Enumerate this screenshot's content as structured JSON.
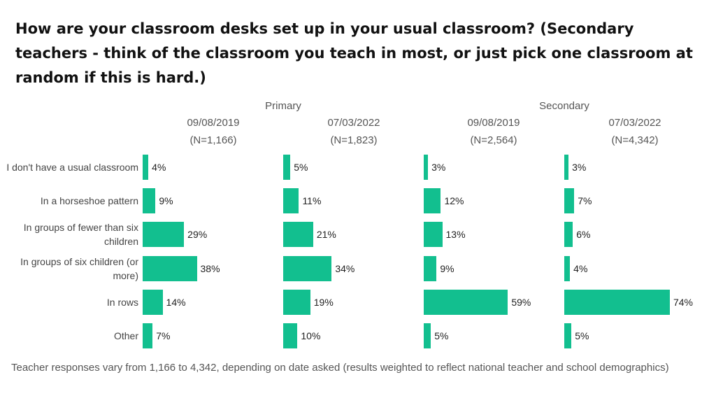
{
  "title": "How are your classroom desks set up in your usual classroom? (Secondary teachers - think of the classroom you teach in most, or just pick one classroom at random if this is hard.)",
  "footnote": "Teacher responses vary from 1,166 to 4,342, depending on date asked (results weighted to reflect national teacher and school demographics)",
  "colors": {
    "bar": "#12bf8f"
  },
  "chart_data": {
    "type": "bar",
    "orientation": "horizontal",
    "categories": [
      "I don't have a usual classroom",
      "In a horseshoe pattern",
      "In groups of fewer than six children",
      "In groups of six children (or more)",
      "In rows",
      "Other"
    ],
    "groups": [
      "Primary",
      "Secondary"
    ],
    "panels": [
      {
        "group": "Primary",
        "date": "09/08/2019",
        "n": "(N=1,166)",
        "values": [
          4,
          9,
          29,
          38,
          14,
          7
        ],
        "labels": [
          "4%",
          "9%",
          "29%",
          "38%",
          "14%",
          "7%"
        ]
      },
      {
        "group": "Primary",
        "date": "07/03/2022",
        "n": "(N=1,823)",
        "values": [
          5,
          11,
          21,
          34,
          19,
          10
        ],
        "labels": [
          "5%",
          "11%",
          "21%",
          "34%",
          "19%",
          "10%"
        ]
      },
      {
        "group": "Secondary",
        "date": "09/08/2019",
        "n": "(N=2,564)",
        "values": [
          3,
          12,
          13,
          9,
          59,
          5
        ],
        "labels": [
          "3%",
          "12%",
          "13%",
          "9%",
          "59%",
          "5%"
        ]
      },
      {
        "group": "Secondary",
        "date": "07/03/2022",
        "n": "(N=4,342)",
        "values": [
          3,
          7,
          6,
          4,
          74,
          5
        ],
        "labels": [
          "3%",
          "7%",
          "6%",
          "4%",
          "74%",
          "5%"
        ]
      }
    ],
    "unit": "%",
    "xlim": [
      0,
      100
    ],
    "grid": false,
    "legend": "none"
  }
}
